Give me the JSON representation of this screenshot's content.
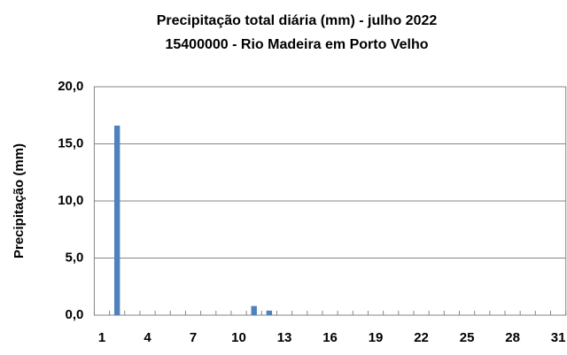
{
  "chart_data": {
    "type": "bar",
    "title": "Precipitação total diária (mm) - julho 2022",
    "subtitle": "15400000  - Rio Madeira em Porto Velho",
    "y_label": "Precipitação (mm)",
    "categories": [
      "1",
      null,
      null,
      "4",
      null,
      null,
      "7",
      null,
      null,
      "10",
      null,
      null,
      "13",
      null,
      null,
      "16",
      null,
      null,
      "19",
      null,
      null,
      "22",
      null,
      null,
      "25",
      null,
      null,
      "28",
      null,
      null,
      "31"
    ],
    "values": [
      0,
      16.6,
      0,
      0,
      0,
      0,
      0,
      0,
      0,
      0,
      0.8,
      0.4,
      0,
      0,
      0,
      0,
      0,
      0,
      0,
      0,
      0,
      0,
      0,
      0,
      0,
      0,
      0,
      0,
      0,
      0,
      0
    ],
    "color": "#4f81bd",
    "ylim": [
      0,
      20
    ],
    "yticks": [
      {
        "value": 0,
        "label": "0,0"
      },
      {
        "value": 5,
        "label": "5,0"
      },
      {
        "value": 10,
        "label": "10,0"
      },
      {
        "value": 15,
        "label": "15,0"
      },
      {
        "value": 20,
        "label": "20,0"
      }
    ],
    "grid": true
  }
}
